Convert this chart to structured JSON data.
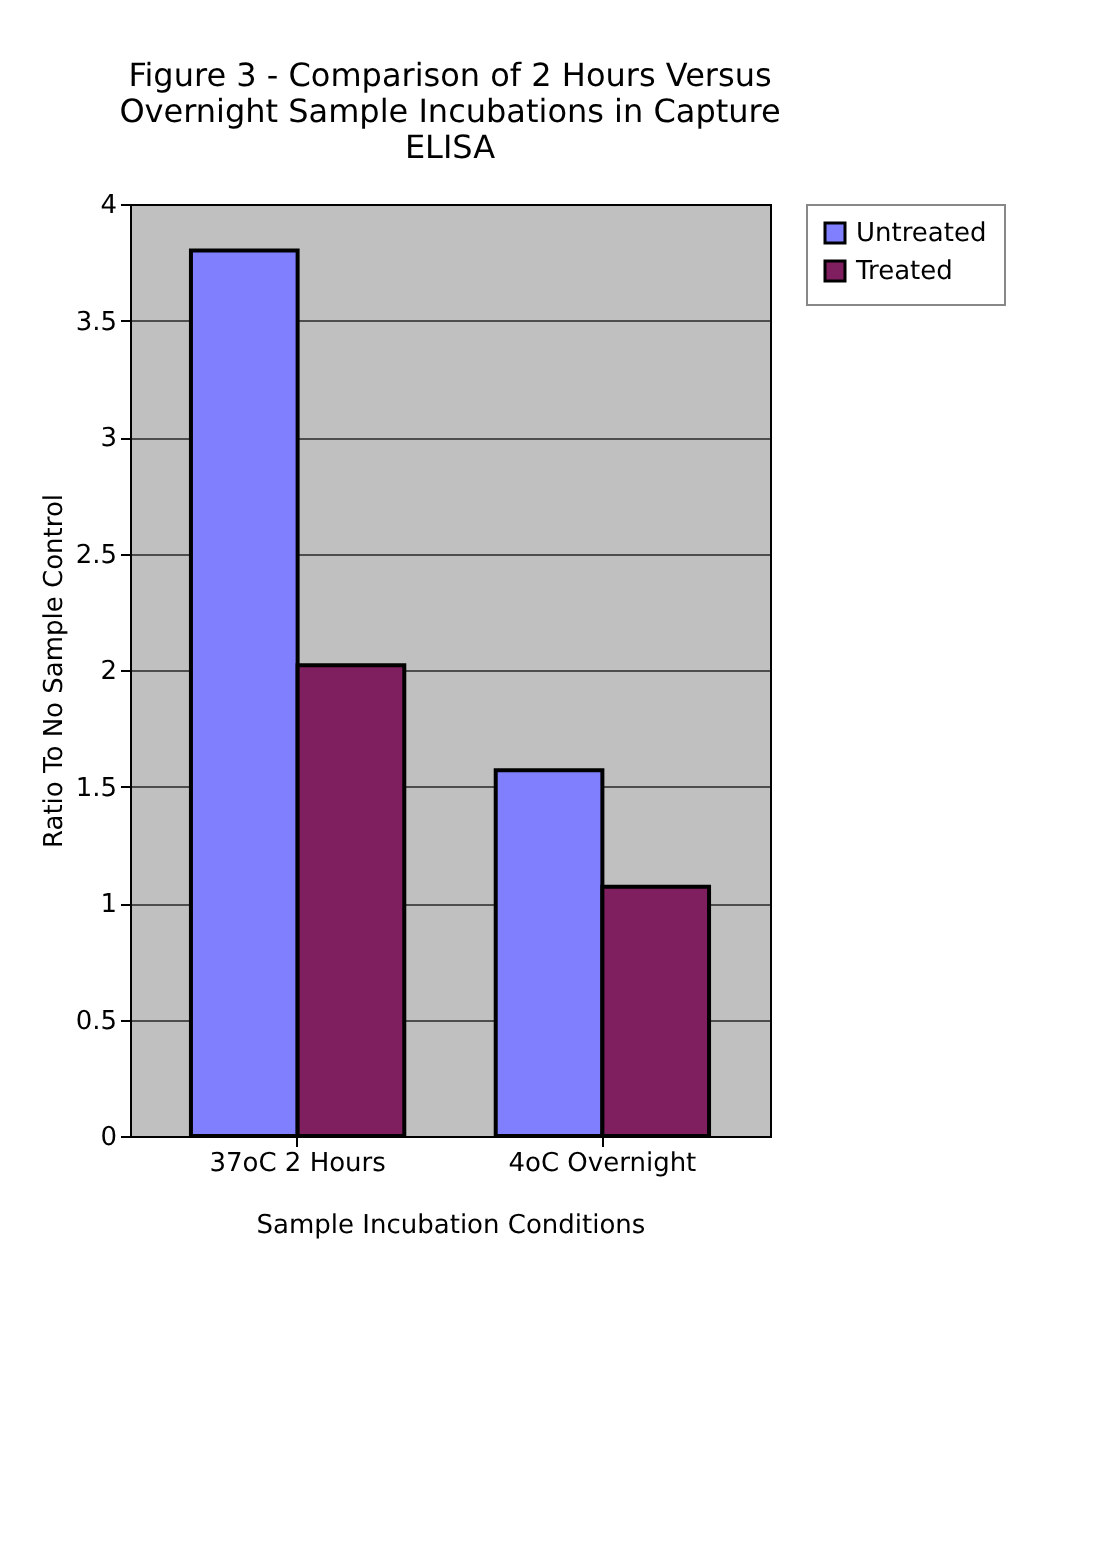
{
  "chart_data": {
    "type": "bar",
    "title": "Figure 3 - Comparison of 2 Hours Versus Overnight Sample Incubations in Capture ELISA",
    "xlabel": "Sample Incubation Conditions",
    "ylabel": "Ratio To No Sample Control",
    "categories": [
      "37oC 2 Hours",
      "4oC Overnight"
    ],
    "series": [
      {
        "name": "Untreated",
        "color": "#8080ff",
        "values": [
          3.8,
          1.57
        ]
      },
      {
        "name": "Treated",
        "color": "#7f1f5f",
        "values": [
          2.02,
          1.07
        ]
      }
    ],
    "ylim": [
      0,
      4
    ],
    "yticks": [
      0,
      0.5,
      1,
      1.5,
      2,
      2.5,
      3,
      3.5,
      4
    ],
    "grid": "y",
    "legend": "right"
  }
}
